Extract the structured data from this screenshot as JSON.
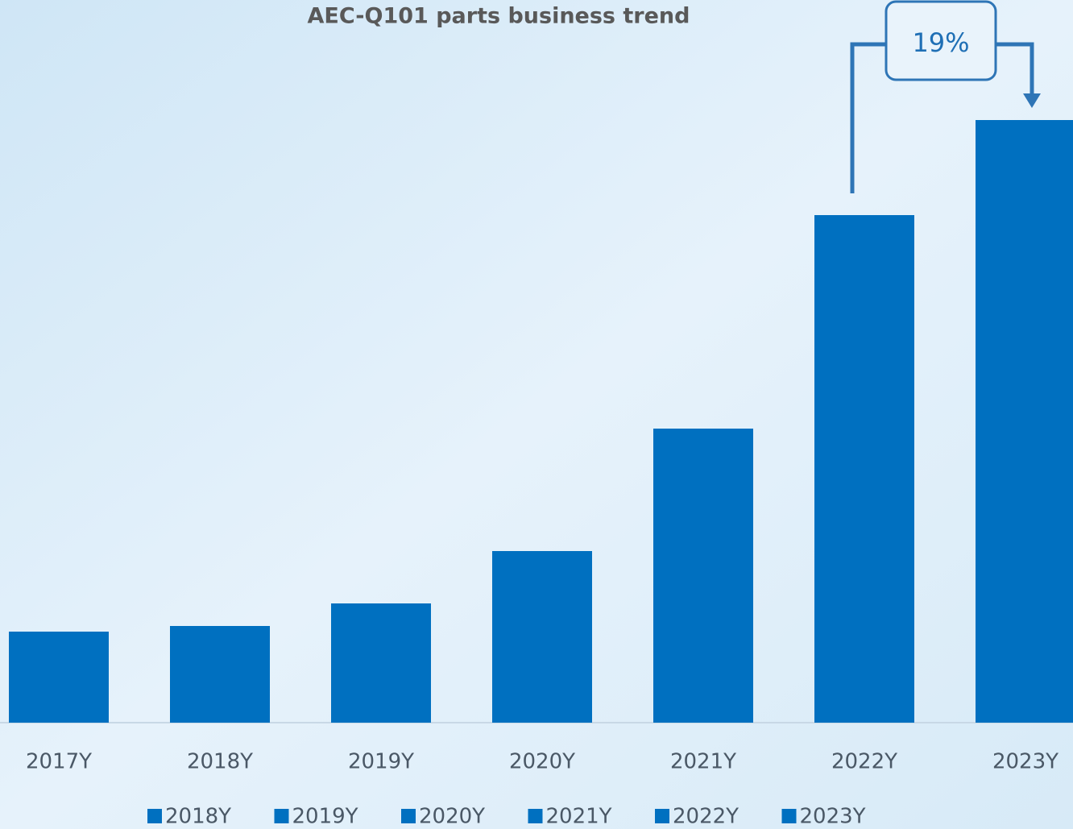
{
  "chart_data": {
    "type": "bar",
    "title": "AEC-Q101 parts business trend",
    "categories": [
      "2017Y",
      "2018Y",
      "2019Y",
      "2020Y",
      "2021Y",
      "2022Y",
      "2023Y"
    ],
    "values": [
      113,
      120,
      148,
      213,
      365,
      630,
      748
    ],
    "color": "#0070c0",
    "legend": [
      "2018Y",
      "2019Y",
      "2020Y",
      "2021Y",
      "2022Y",
      "2023Y"
    ],
    "annotation": "19%"
  }
}
